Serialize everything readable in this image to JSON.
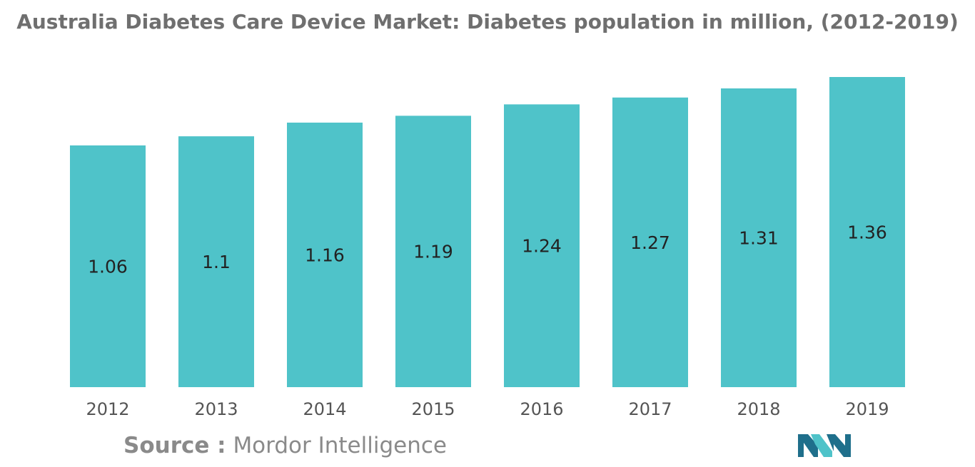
{
  "chart_data": {
    "type": "bar",
    "title": "Australia Diabetes Care Device Market: Diabetes population in million, (2012-2019)",
    "categories": [
      "2012",
      "2013",
      "2014",
      "2015",
      "2016",
      "2017",
      "2018",
      "2019"
    ],
    "values": [
      1.06,
      1.1,
      1.16,
      1.19,
      1.24,
      1.27,
      1.31,
      1.36
    ],
    "value_labels": [
      "1.06",
      "1.1",
      "1.16",
      "1.19",
      "1.24",
      "1.27",
      "1.31",
      "1.36"
    ],
    "xlabel": "",
    "ylabel": "",
    "ylim": [
      0,
      1.4
    ],
    "grid": false,
    "bar_color": "#4fc3c9"
  },
  "source": {
    "label": "Source :",
    "name": "Mordor Intelligence"
  },
  "logo_colors": {
    "dark": "#1f6f8b",
    "light": "#4fc3c9"
  }
}
